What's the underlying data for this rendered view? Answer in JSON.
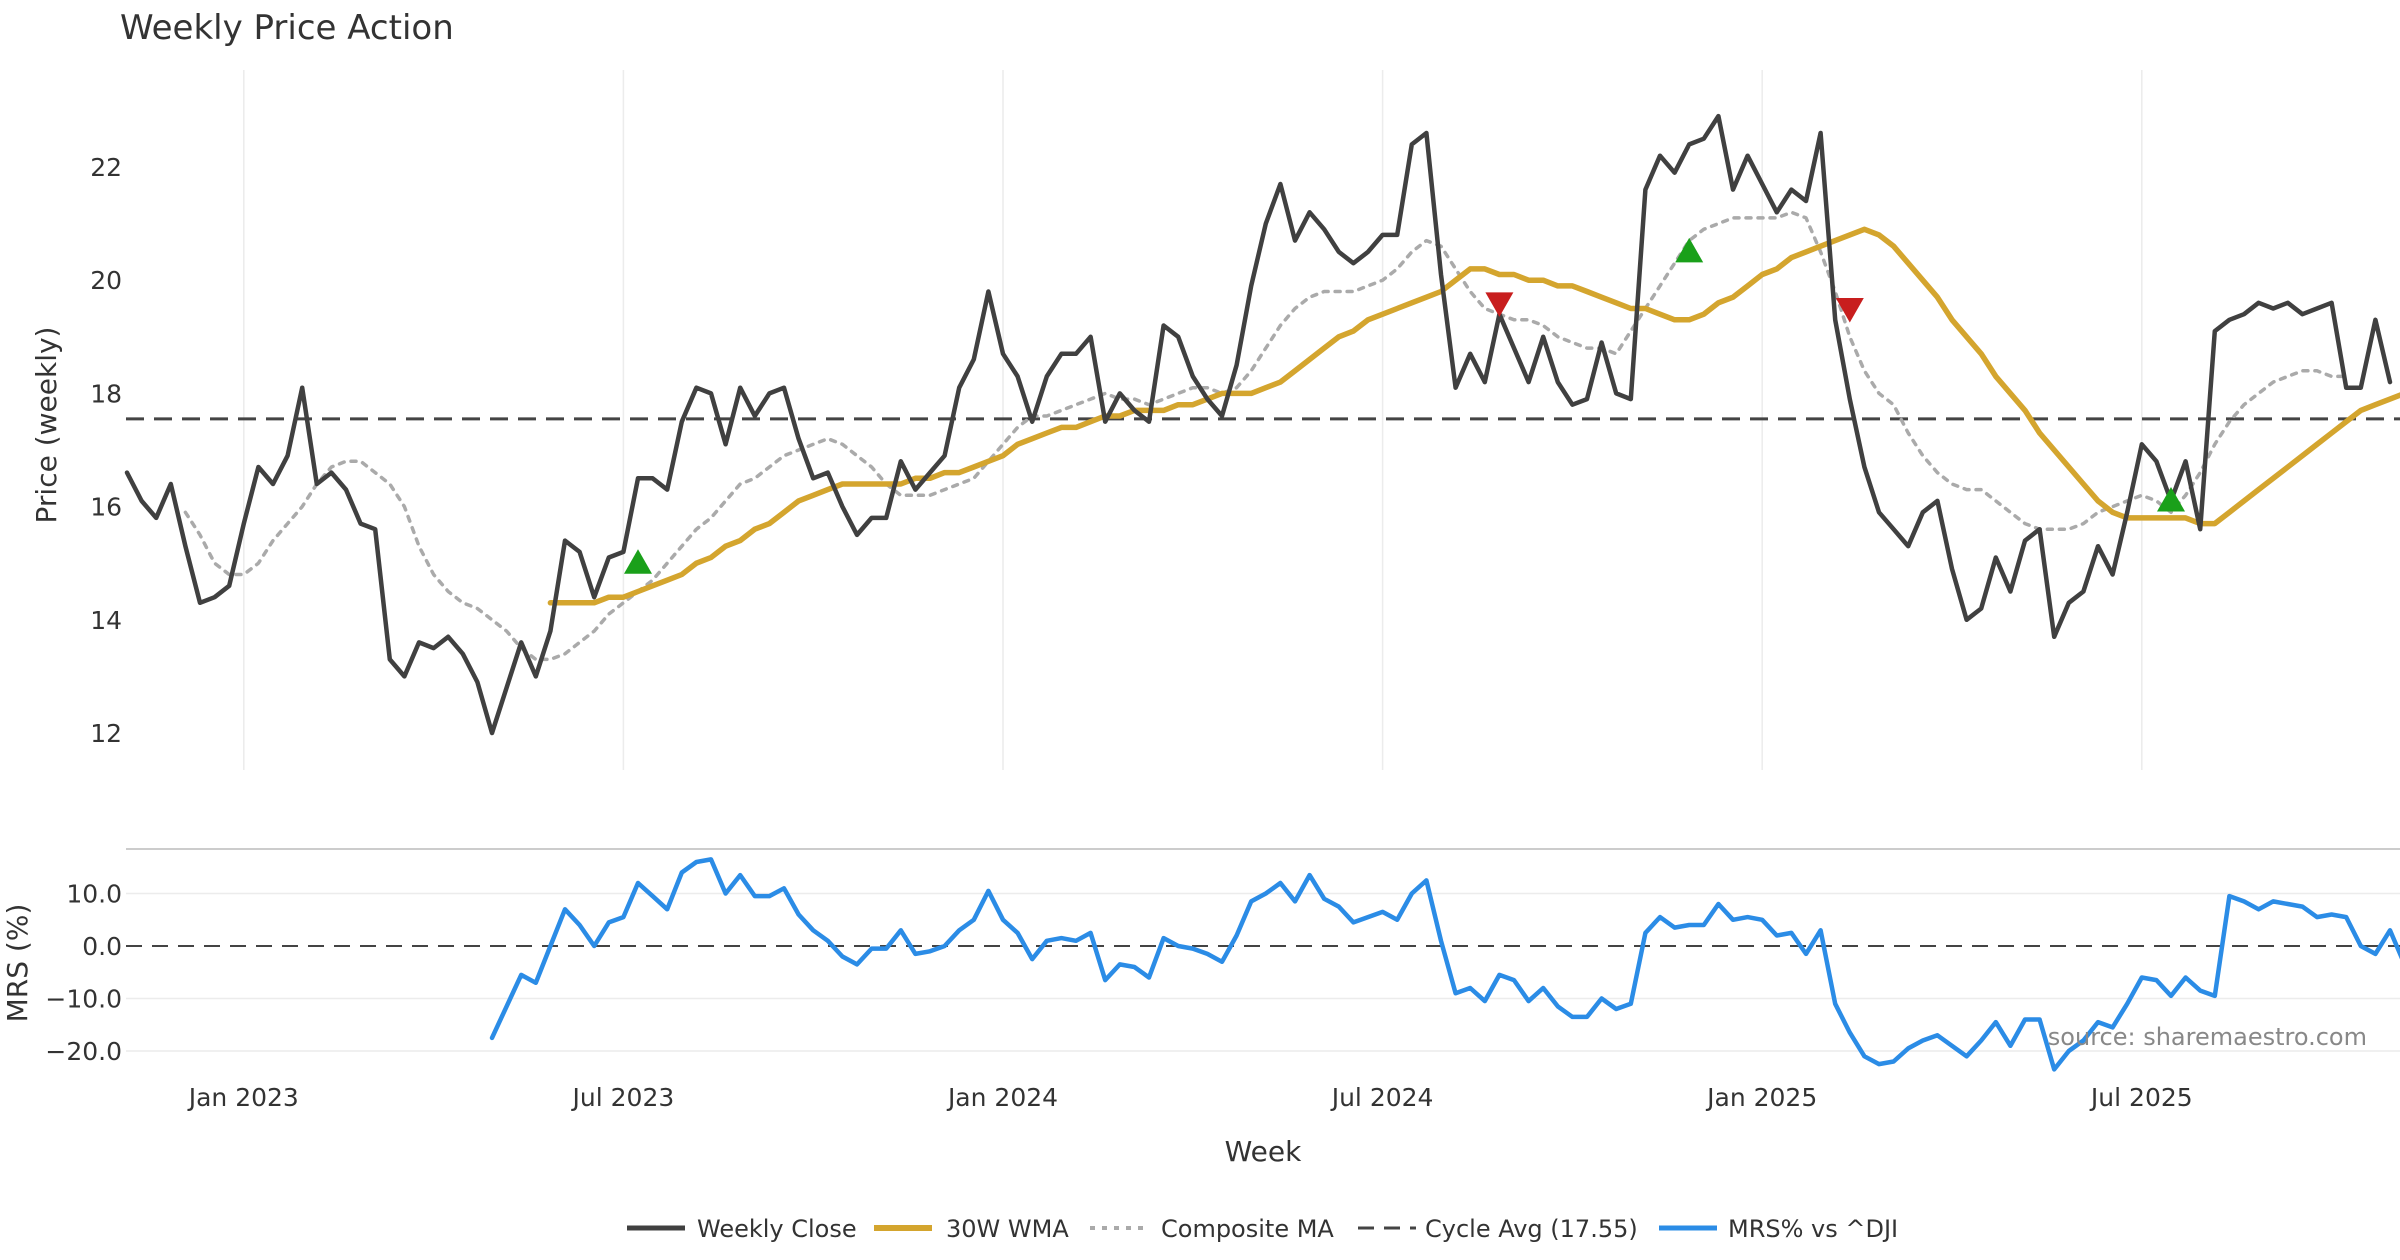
{
  "chart_data": {
    "type": "line",
    "title": "Weekly Price Action",
    "source_note": "source: sharemaestro.com",
    "x_axis": {
      "label": "Week",
      "ticks": [
        {
          "label": "Jan 2023",
          "week": 8
        },
        {
          "label": "Jul 2023",
          "week": 34
        },
        {
          "label": "Jan 2024",
          "week": 60
        },
        {
          "label": "Jul 2024",
          "week": 86
        },
        {
          "label": "Jan 2025",
          "week": 112
        },
        {
          "label": "Jul 2025",
          "week": 138
        }
      ]
    },
    "price_panel": {
      "ylabel": "Price (weekly)",
      "yticks": [
        "12",
        "14",
        "16",
        "18",
        "20",
        "22"
      ],
      "ylim": [
        11.4,
        23.6
      ],
      "cycle_avg": 17.55,
      "series": [
        {
          "name": "Weekly Close",
          "color": "#404040",
          "start_week": 0,
          "values": [
            16.6,
            16.1,
            15.8,
            16.4,
            15.3,
            14.3,
            14.4,
            14.6,
            15.7,
            16.7,
            16.4,
            16.9,
            18.1,
            16.4,
            16.6,
            16.3,
            15.7,
            15.6,
            13.3,
            13.0,
            13.6,
            13.5,
            13.7,
            13.4,
            12.9,
            12.0,
            12.8,
            13.6,
            13.0,
            13.8,
            15.4,
            15.2,
            14.4,
            15.1,
            15.2,
            16.5,
            16.5,
            16.3,
            17.5,
            18.1,
            18.0,
            17.1,
            18.1,
            17.6,
            18.0,
            18.1,
            17.2,
            16.5,
            16.6,
            16.0,
            15.5,
            15.8,
            15.8,
            16.8,
            16.3,
            16.6,
            16.9,
            18.1,
            18.6,
            19.8,
            18.7,
            18.3,
            17.5,
            18.3,
            18.7,
            18.7,
            19.0,
            17.5,
            18.0,
            17.7,
            17.5,
            19.2,
            19.0,
            18.3,
            17.9,
            17.6,
            18.5,
            19.9,
            21.0,
            21.7,
            20.7,
            21.2,
            20.9,
            20.5,
            20.3,
            20.5,
            20.8,
            20.8,
            22.4,
            22.6,
            20.1,
            18.1,
            18.7,
            18.2,
            19.4,
            18.8,
            18.2,
            19.0,
            18.2,
            17.8,
            17.9,
            18.9,
            18.0,
            17.9,
            21.6,
            22.2,
            21.9,
            22.4,
            22.5,
            22.9,
            21.6,
            22.2,
            21.7,
            21.2,
            21.6,
            21.4,
            22.6,
            19.3,
            17.9,
            16.7,
            15.9,
            15.6,
            15.3,
            15.9,
            16.1,
            14.9,
            14.0,
            14.2,
            15.1,
            14.5,
            15.4,
            15.6,
            13.7,
            14.3,
            14.5,
            15.3,
            14.8,
            15.9,
            17.1,
            16.8,
            16.1,
            16.8,
            15.6,
            19.1,
            19.3,
            19.4,
            19.6,
            19.5,
            19.6,
            19.4,
            19.5,
            19.6,
            18.1,
            18.1,
            19.3,
            18.2
          ]
        },
        {
          "name": "30W WMA",
          "color": "#d4a52e",
          "start_week": 29,
          "values": [
            14.3,
            14.3,
            14.3,
            14.3,
            14.4,
            14.4,
            14.5,
            14.6,
            14.7,
            14.8,
            15.0,
            15.1,
            15.3,
            15.4,
            15.6,
            15.7,
            15.9,
            16.1,
            16.2,
            16.3,
            16.4,
            16.4,
            16.4,
            16.4,
            16.4,
            16.5,
            16.5,
            16.6,
            16.6,
            16.7,
            16.8,
            16.9,
            17.1,
            17.2,
            17.3,
            17.4,
            17.4,
            17.5,
            17.6,
            17.6,
            17.7,
            17.7,
            17.7,
            17.8,
            17.8,
            17.9,
            18.0,
            18.0,
            18.0,
            18.1,
            18.2,
            18.4,
            18.6,
            18.8,
            19.0,
            19.1,
            19.3,
            19.4,
            19.5,
            19.6,
            19.7,
            19.8,
            20.0,
            20.2,
            20.2,
            20.1,
            20.1,
            20.0,
            20.0,
            19.9,
            19.9,
            19.8,
            19.7,
            19.6,
            19.5,
            19.5,
            19.4,
            19.3,
            19.3,
            19.4,
            19.6,
            19.7,
            19.9,
            20.1,
            20.2,
            20.4,
            20.5,
            20.6,
            20.7,
            20.8,
            20.9,
            20.8,
            20.6,
            20.3,
            20.0,
            19.7,
            19.3,
            19.0,
            18.7,
            18.3,
            18.0,
            17.7,
            17.3,
            17.0,
            16.7,
            16.4,
            16.1,
            15.9,
            15.8,
            15.8,
            15.8,
            15.8,
            15.8,
            15.7,
            15.7,
            15.9,
            16.1,
            16.3,
            16.5,
            16.7,
            16.9,
            17.1,
            17.3,
            17.5,
            17.7,
            17.8,
            17.9,
            18.0
          ]
        },
        {
          "name": "Composite MA",
          "color": "#aaaaaa",
          "start_week": 4,
          "values": [
            15.9,
            15.5,
            15.0,
            14.8,
            14.8,
            15.0,
            15.4,
            15.7,
            16.0,
            16.4,
            16.7,
            16.8,
            16.8,
            16.6,
            16.4,
            16.0,
            15.3,
            14.8,
            14.5,
            14.3,
            14.2,
            14.0,
            13.8,
            13.5,
            13.3,
            13.3,
            13.4,
            13.6,
            13.8,
            14.1,
            14.3,
            14.5,
            14.7,
            15.0,
            15.3,
            15.6,
            15.8,
            16.1,
            16.4,
            16.5,
            16.7,
            16.9,
            17.0,
            17.1,
            17.2,
            17.1,
            16.9,
            16.7,
            16.4,
            16.2,
            16.2,
            16.2,
            16.3,
            16.4,
            16.5,
            16.8,
            17.1,
            17.4,
            17.6,
            17.6,
            17.7,
            17.8,
            17.9,
            18.0,
            17.9,
            17.9,
            17.8,
            17.9,
            18.0,
            18.1,
            18.1,
            18.0,
            18.1,
            18.4,
            18.8,
            19.2,
            19.5,
            19.7,
            19.8,
            19.8,
            19.8,
            19.9,
            20.0,
            20.2,
            20.5,
            20.7,
            20.6,
            20.2,
            19.8,
            19.5,
            19.4,
            19.3,
            19.3,
            19.2,
            19.0,
            18.9,
            18.8,
            18.8,
            18.7,
            19.1,
            19.5,
            19.9,
            20.3,
            20.7,
            20.9,
            21.0,
            21.1,
            21.1,
            21.1,
            21.1,
            21.2,
            21.1,
            20.5,
            19.8,
            19.0,
            18.4,
            18.0,
            17.8,
            17.3,
            16.9,
            16.6,
            16.4,
            16.3,
            16.3,
            16.1,
            15.9,
            15.7,
            15.6,
            15.6,
            15.6,
            15.7,
            15.9,
            16.0,
            16.1,
            16.2,
            16.1,
            15.9,
            16.2,
            16.6,
            17.1,
            17.5,
            17.8,
            18.0,
            18.2,
            18.3,
            18.4,
            18.4,
            18.3,
            18.3
          ]
        }
      ],
      "markers": [
        {
          "type": "up",
          "week": 35,
          "value": 15.0,
          "color": "#1aa01a"
        },
        {
          "type": "up",
          "week": 107,
          "value": 20.5,
          "color": "#1aa01a"
        },
        {
          "type": "up",
          "week": 140,
          "value": 16.1,
          "color": "#1aa01a"
        },
        {
          "type": "down",
          "week": 94,
          "value": 19.6,
          "color": "#c81e1e"
        },
        {
          "type": "down",
          "week": 118,
          "value": 19.5,
          "color": "#c81e1e"
        }
      ]
    },
    "mrs_panel": {
      "ylabel": "MRS (%)",
      "yticks": [
        "10.0",
        "0.0",
        "−10.0",
        "−20.0"
      ],
      "ylim": [
        -24,
        18
      ],
      "series": {
        "name": "MRS% vs ^DJI",
        "color": "#2b8ce6",
        "start_week": 25,
        "values": [
          -17.5,
          -11.5,
          -5.5,
          -7.0,
          0.0,
          7.0,
          4.0,
          0.0,
          4.5,
          5.5,
          12.0,
          9.5,
          7.0,
          14.0,
          16.0,
          16.5,
          10.0,
          13.5,
          9.5,
          9.5,
          11.0,
          6.0,
          3.0,
          1.0,
          -2.0,
          -3.5,
          -0.5,
          -0.5,
          3.0,
          -1.5,
          -1.0,
          0.0,
          3.0,
          5.0,
          10.5,
          5.0,
          2.5,
          -2.5,
          1.0,
          1.5,
          1.0,
          2.5,
          -6.5,
          -3.5,
          -4.0,
          -6.0,
          1.5,
          0.0,
          -0.5,
          -1.5,
          -3.0,
          2.0,
          8.5,
          10.0,
          12.0,
          8.5,
          13.5,
          9.0,
          7.5,
          4.5,
          5.5,
          6.5,
          5.0,
          10.0,
          12.5,
          1.0,
          -9.0,
          -8.0,
          -10.5,
          -5.5,
          -6.5,
          -10.5,
          -8.0,
          -11.5,
          -13.5,
          -13.5,
          -10.0,
          -12.0,
          -11.0,
          2.5,
          5.5,
          3.5,
          4.0,
          4.0,
          8.0,
          5.0,
          5.5,
          5.0,
          2.0,
          2.5,
          -1.5,
          3.0,
          -11.0,
          -16.5,
          -21.0,
          -22.5,
          -22.0,
          -19.5,
          -18.0,
          -17.0,
          -19.0,
          -21.0,
          -18.0,
          -14.5,
          -19.0,
          -14.0,
          -14.0,
          -23.5,
          -20.0,
          -18.0,
          -14.5,
          -15.5,
          -11.0,
          -6.0,
          -6.5,
          -9.5,
          -6.0,
          -8.5,
          -9.5,
          9.5,
          8.5,
          7.0,
          8.5,
          8.0,
          7.5,
          5.5,
          6.0,
          5.5,
          0.0,
          -1.5,
          3.0,
          -3.5
        ]
      }
    },
    "legend": [
      "Weekly Close",
      "30W WMA",
      "Composite MA",
      "Cycle Avg (17.55)",
      "MRS% vs ^DJI"
    ],
    "grid": true,
    "legend_position": "bottom-center"
  }
}
